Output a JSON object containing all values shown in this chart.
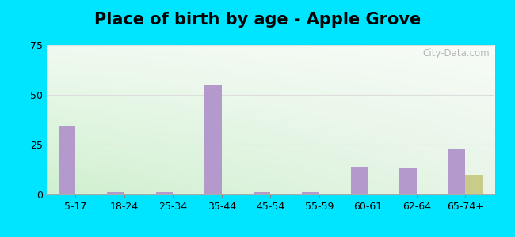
{
  "title": "Place of birth by age - Apple Grove",
  "categories": [
    "5-17",
    "18-24",
    "25-34",
    "35-44",
    "45-54",
    "55-59",
    "60-61",
    "62-64",
    "65-74+"
  ],
  "born_in_state": [
    34,
    1,
    1,
    55,
    1,
    1,
    14,
    13,
    23
  ],
  "born_in_other": [
    0,
    0,
    0,
    0,
    0,
    0,
    0,
    0,
    10
  ],
  "bar_color_state": "#b399cc",
  "bar_color_other": "#c8cc88",
  "ylim": [
    0,
    75
  ],
  "yticks": [
    0,
    25,
    50,
    75
  ],
  "figure_bg": "#00e5ff",
  "title_fontsize": 15,
  "watermark": "City-Data.com",
  "bar_width": 0.35
}
